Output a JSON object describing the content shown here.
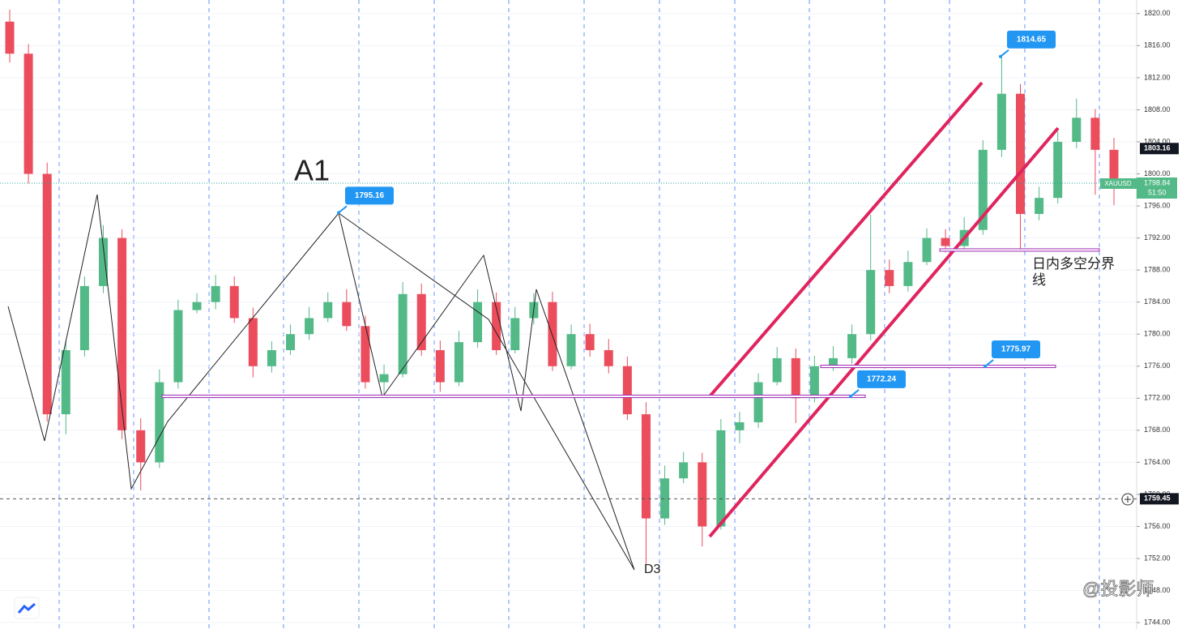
{
  "chart_data": {
    "type": "candlestick",
    "symbol": "XAUUSD",
    "ylim": [
      1743.2,
      1821.7
    ],
    "yticks": [
      {
        "value": 1744,
        "label": "1744.00"
      },
      {
        "value": 1748,
        "label": "1748.00"
      },
      {
        "value": 1752,
        "label": "1752.00"
      },
      {
        "value": 1756,
        "label": "1756.00"
      },
      {
        "value": 1760,
        "label": "1760.00"
      },
      {
        "value": 1764,
        "label": "1764.00"
      },
      {
        "value": 1768,
        "label": "1768.00"
      },
      {
        "value": 1772,
        "label": "1772.00"
      },
      {
        "value": 1776,
        "label": "1776.00"
      },
      {
        "value": 1780,
        "label": "1780.00"
      },
      {
        "value": 1784,
        "label": "1784.00"
      },
      {
        "value": 1788,
        "label": "1788.00"
      },
      {
        "value": 1792,
        "label": "1792.00"
      },
      {
        "value": 1796,
        "label": "1796.00"
      },
      {
        "value": 1800,
        "label": "1800.00"
      },
      {
        "value": 1804,
        "label": "1804.00"
      },
      {
        "value": 1808,
        "label": "1808.00"
      },
      {
        "value": 1812,
        "label": "1812.00"
      },
      {
        "value": 1816,
        "label": "1816.00"
      },
      {
        "value": 1820,
        "label": "1820.00"
      }
    ],
    "up_color": "#53b987",
    "down_color": "#eb4d5c",
    "open": [
      1819,
      1815,
      1800,
      1770,
      1778,
      1786,
      1792,
      1768,
      1764,
      1774,
      1783,
      1784,
      1786,
      1782,
      1776,
      1778,
      1780,
      1782,
      1784,
      1781,
      1774,
      1775,
      1785,
      1778,
      1774,
      1779,
      1784,
      1778,
      1782,
      1784,
      1776,
      1780,
      1778,
      1776,
      1770,
      1757,
      1762,
      1764,
      1756,
      1768,
      1769,
      1774,
      1777,
      1772,
      1776,
      1777,
      1780,
      1788,
      1786,
      1789,
      1792,
      1791,
      1793,
      1803,
      1810,
      1795,
      1797,
      1804,
      1807,
      1803
    ],
    "high": [
      1820.5,
      1816.2,
      1801.4,
      1779.3,
      1787.2,
      1793.6,
      1793.1,
      1769.5,
      1775.6,
      1784.3,
      1785.1,
      1787.4,
      1787.2,
      1783.3,
      1779.1,
      1781.2,
      1783.4,
      1785.2,
      1785.6,
      1782.3,
      1776.2,
      1786.5,
      1786.3,
      1779.2,
      1780.4,
      1785.6,
      1785.2,
      1783.4,
      1785.1,
      1785.3,
      1781.2,
      1781.3,
      1779.4,
      1777.2,
      1771.5,
      1763.6,
      1765.3,
      1765.2,
      1769.4,
      1770.3,
      1775.1,
      1778.4,
      1778.2,
      1777.3,
      1778.5,
      1781.2,
      1794.9,
      1789.3,
      1790.4,
      1793.2,
      1793.1,
      1794.6,
      1804.2,
      1814.65,
      1811.2,
      1798.4,
      1805.3,
      1809.4,
      1808.1,
      1804.5
    ],
    "low": [
      1813.9,
      1798.8,
      1769.1,
      1767.5,
      1777.2,
      1785.1,
      1766.9,
      1760.5,
      1763.3,
      1773.2,
      1782.6,
      1783.1,
      1781.4,
      1774.6,
      1775.2,
      1777.4,
      1779.3,
      1781.5,
      1780.4,
      1773.2,
      1772.4,
      1774.6,
      1777.3,
      1772.8,
      1773.5,
      1778.3,
      1777.4,
      1777.6,
      1781.2,
      1775.4,
      1775.6,
      1777.2,
      1775.1,
      1769.3,
      1751.2,
      1756.2,
      1761.4,
      1753.5,
      1755.6,
      1766.4,
      1768.3,
      1773.6,
      1768.9,
      1771.5,
      1775.4,
      1776.3,
      1779.2,
      1785.1,
      1785.3,
      1788.6,
      1790.2,
      1790.3,
      1792.4,
      1802.1,
      1790.3,
      1794.2,
      1796.3,
      1803.2,
      1797.4,
      1796.1
    ],
    "close": [
      1815,
      1800,
      1770,
      1778,
      1786,
      1792,
      1768,
      1764,
      1774,
      1783,
      1784,
      1786,
      1782,
      1776,
      1778,
      1780,
      1782,
      1784,
      1781,
      1774,
      1775,
      1785,
      1778,
      1774,
      1779,
      1784,
      1778,
      1782,
      1784,
      1776,
      1780,
      1778,
      1776,
      1770,
      1757,
      1762,
      1764,
      1756,
      1768,
      1769,
      1774,
      1777,
      1772,
      1776,
      1777,
      1780,
      1788,
      1786,
      1789,
      1792,
      1791,
      1793,
      1803,
      1810,
      1795,
      1797,
      1804,
      1807,
      1803,
      1799
    ],
    "price_tags": [
      1795.16,
      1814.65,
      1772.24,
      1775.97
    ],
    "marked_price": 1803.16,
    "last_price": 1798.84,
    "countdown": "51:50",
    "crosshair_price": 1759.45,
    "pivot_level": 1790.5,
    "pivot_label": "日内多空分界线",
    "wave_labels": [
      "A1",
      "D3"
    ],
    "watermark": "@投影师"
  }
}
